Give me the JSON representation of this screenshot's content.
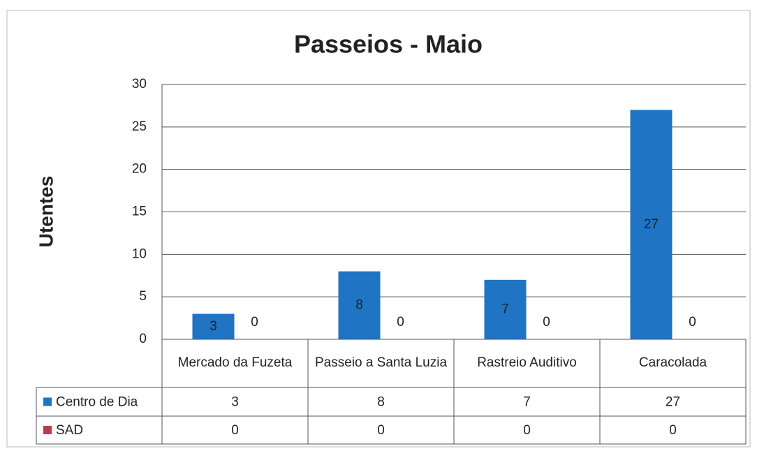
{
  "chart_data": {
    "type": "bar",
    "title": "Passeios - Maio",
    "y_label": "Utentes",
    "categories": [
      "Mercado da Fuzeta",
      "Passeio a Santa Luzia",
      "Rastreio Auditivo",
      "Caracolada"
    ],
    "series": [
      {
        "name": "Centro de Dia",
        "color": "#1f74c4",
        "values": [
          3,
          8,
          7,
          27
        ]
      },
      {
        "name": "SAD",
        "color": "#c0394e",
        "values": [
          0,
          0,
          0,
          0
        ]
      }
    ],
    "ylim": [
      0,
      30
    ],
    "yticks": [
      0,
      5,
      10,
      15,
      20,
      25,
      30
    ],
    "grid": true,
    "data_table": true
  }
}
